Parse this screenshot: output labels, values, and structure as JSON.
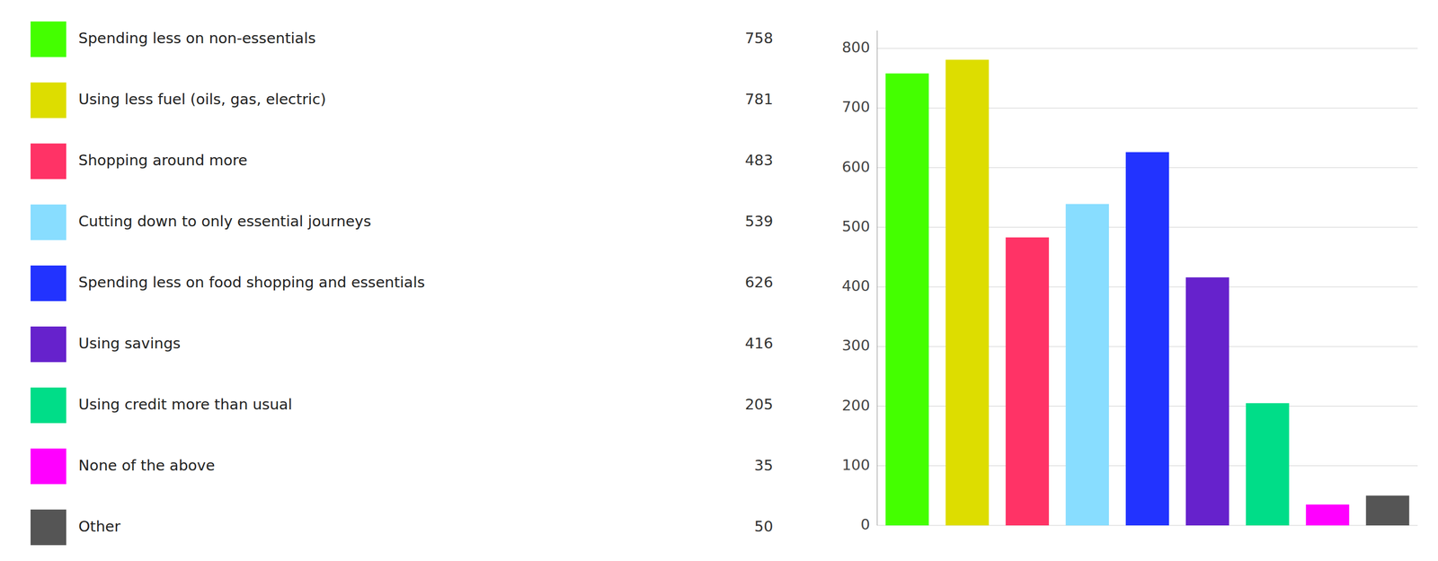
{
  "chart_data": {
    "type": "bar",
    "categories": [
      "Spending less on non-essentials",
      "Using less fuel (oils, gas, electric)",
      "Shopping around more",
      "Cutting down to only essential journeys",
      "Spending less on food shopping and essentials",
      "Using savings",
      "Using credit more than usual",
      "None of the above",
      "Other"
    ],
    "values": [
      758,
      781,
      483,
      539,
      626,
      416,
      205,
      35,
      50
    ],
    "colors": [
      "#44ff00",
      "#dddd00",
      "#ff3366",
      "#88ddff",
      "#2233ff",
      "#6622cc",
      "#00dd88",
      "#ff00ff",
      "#555555"
    ],
    "ylim": [
      0,
      830
    ],
    "yticks": [
      0,
      100,
      200,
      300,
      400,
      500,
      600,
      700,
      800
    ],
    "grid": true,
    "legend": "left",
    "tick_labels": "y"
  }
}
